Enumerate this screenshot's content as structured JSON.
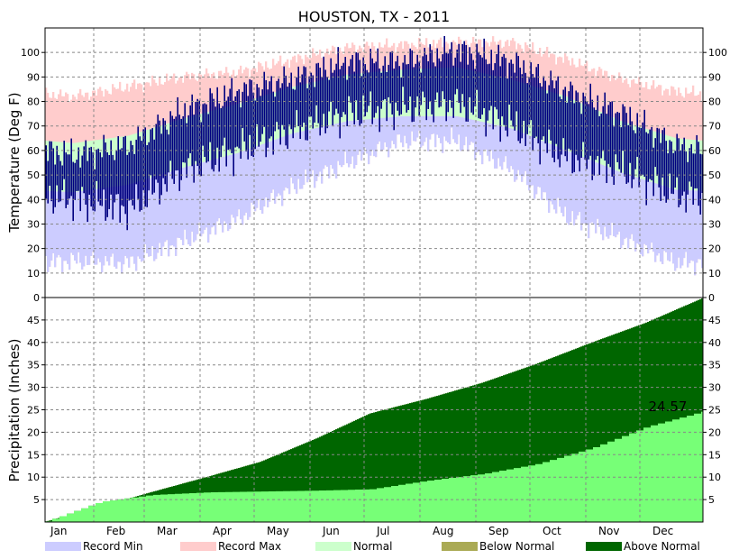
{
  "chart_data": {
    "type": "area",
    "title": "HOUSTON, TX - 2011",
    "months": [
      "Jan",
      "Feb",
      "Mar",
      "Apr",
      "May",
      "Jun",
      "Jul",
      "Aug",
      "Sep",
      "Oct",
      "Nov",
      "Dec"
    ],
    "temperature": {
      "ylabel": "Temperature (Deg F)",
      "ylim": [
        0,
        110
      ],
      "ticks": [
        0,
        10,
        20,
        30,
        40,
        50,
        60,
        70,
        80,
        90,
        100
      ],
      "normal_high_monthly": [
        63,
        66,
        73,
        79,
        86,
        91,
        93,
        94,
        89,
        82,
        72,
        65
      ],
      "normal_low_monthly": [
        43,
        46,
        53,
        59,
        67,
        72,
        74,
        74,
        69,
        60,
        51,
        44
      ],
      "record_max_monthly": [
        82,
        86,
        90,
        92,
        97,
        102,
        103,
        104,
        104,
        97,
        89,
        84
      ],
      "record_min_monthly": [
        15,
        14,
        23,
        32,
        45,
        55,
        64,
        64,
        52,
        33,
        24,
        14
      ],
      "observed_high_monthly": [
        58,
        62,
        76,
        84,
        89,
        96,
        96,
        101,
        96,
        84,
        75,
        62
      ],
      "observed_low_monthly": [
        40,
        36,
        52,
        60,
        68,
        75,
        77,
        79,
        70,
        57,
        52,
        42
      ]
    },
    "precipitation": {
      "ylabel": "Precipitation (Inches)",
      "ylim": [
        0,
        50
      ],
      "ticks": [
        5,
        10,
        15,
        20,
        25,
        30,
        35,
        40,
        45
      ],
      "annotation": "24.57",
      "normal_cumulative_month_end": [
        3.4,
        6.6,
        10.0,
        13.4,
        18.6,
        24.2,
        27.4,
        31.0,
        35.2,
        40.0,
        44.4,
        49.8
      ],
      "observed_cumulative_month_end": [
        4.5,
        6.0,
        6.6,
        6.8,
        7.0,
        7.3,
        9.2,
        10.7,
        12.9,
        16.5,
        21.2,
        24.57
      ]
    },
    "legend": [
      "Record Min",
      "Record Max",
      "Normal",
      "Below Normal",
      "Above Normal"
    ],
    "colors": {
      "record_min": "#ccccff",
      "record_max": "#ffcccc",
      "normal": "#ccffcc",
      "observed": "#000080",
      "below_normal": "#aaaa55",
      "above_normal": "#006600",
      "actual_precip": "#77ff77"
    },
    "grid": true,
    "legend_position": "bottom"
  }
}
